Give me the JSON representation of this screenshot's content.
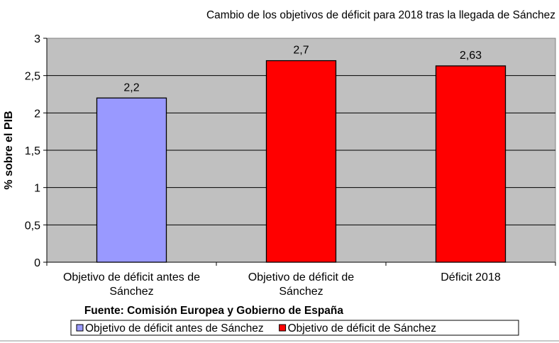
{
  "chart_data": {
    "type": "bar",
    "title": "Cambio de los objetivos de déficit para 2018 tras la llegada de Sánchez",
    "ylabel": "% sobre el PIB",
    "xlabel": "",
    "ylim": [
      0,
      3
    ],
    "yticks": [
      0,
      0.5,
      1,
      1.5,
      2,
      2.5,
      3
    ],
    "ytick_labels": [
      "0",
      "0,5",
      "1",
      "1,5",
      "2",
      "2,5",
      "3"
    ],
    "grid": true,
    "categories": [
      [
        "Objetivo de déficit antes de",
        "Sánchez"
      ],
      [
        "Objetivo de déficit de",
        "Sánchez"
      ],
      [
        "Déficit 2018"
      ]
    ],
    "values": [
      2.2,
      2.7,
      2.63
    ],
    "data_labels": [
      "2,2",
      "2,7",
      "2,63"
    ],
    "bar_colors": [
      "#9999ff",
      "#ff0000",
      "#ff0000"
    ],
    "plot_background": "#c0c0c0",
    "source": "Fuente: Comisión Europea y Gobierno de España",
    "legend_position": "bottom",
    "legend": [
      {
        "label": "Objetivo de déficit antes de Sánchez",
        "color": "#9999ff"
      },
      {
        "label": "Objetivo de déficit de Sánchez",
        "color": "#ff0000"
      }
    ]
  }
}
